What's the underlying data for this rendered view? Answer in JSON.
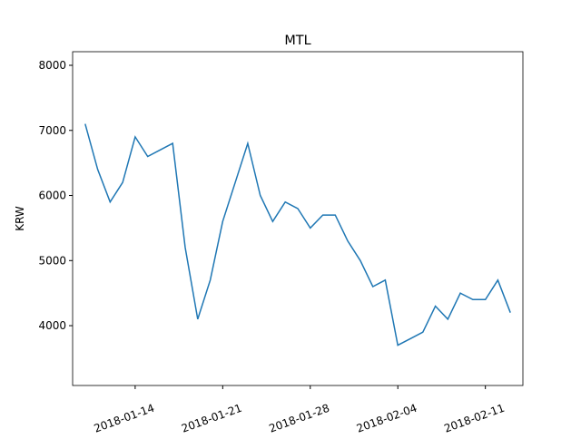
{
  "chart_data": {
    "type": "line",
    "title": "MTL",
    "y_label": "KRW",
    "x": [
      "2018-01-10",
      "2018-01-11",
      "2018-01-12",
      "2018-01-13",
      "2018-01-14",
      "2018-01-15",
      "2018-01-16",
      "2018-01-17",
      "2018-01-18",
      "2018-01-19",
      "2018-01-20",
      "2018-01-21",
      "2018-01-22",
      "2018-01-23",
      "2018-01-24",
      "2018-01-25",
      "2018-01-26",
      "2018-01-27",
      "2018-01-28",
      "2018-01-29",
      "2018-01-30",
      "2018-01-31",
      "2018-02-01",
      "2018-02-02",
      "2018-02-03",
      "2018-02-04",
      "2018-02-05",
      "2018-02-06",
      "2018-02-07",
      "2018-02-08",
      "2018-02-09",
      "2018-02-10",
      "2018-02-11",
      "2018-02-12",
      "2018-02-13"
    ],
    "series": [
      {
        "name": "MTL",
        "color": "#1f77b4",
        "values": [
          7100,
          6400,
          5900,
          6200,
          6900,
          6600,
          6700,
          6800,
          5200,
          4100,
          4700,
          5600,
          6200,
          6800,
          6000,
          5600,
          5900,
          5800,
          5500,
          5700,
          5700,
          5300,
          5000,
          4600,
          4700,
          3700,
          3800,
          3900,
          4300,
          4100,
          4500,
          4400,
          4400,
          4700,
          4200
        ]
      }
    ],
    "xlim": [
      "2018-01-09",
      "2018-02-14"
    ],
    "xticks": [
      "2018-01-14",
      "2018-01-21",
      "2018-01-28",
      "2018-02-04",
      "2018-02-11"
    ],
    "ylim": [
      3081,
      8209
    ],
    "yticks": [
      4000,
      5000,
      6000,
      7000,
      8000
    ]
  }
}
